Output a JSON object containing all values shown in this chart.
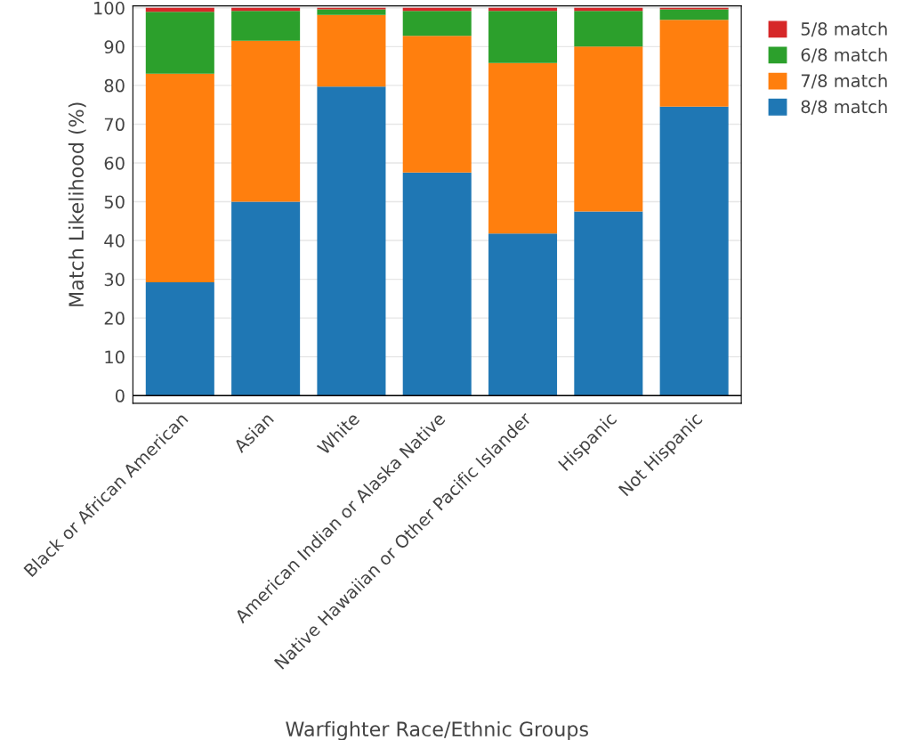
{
  "chart_data": {
    "type": "bar",
    "stacked": true,
    "xlabel": "Warfighter Race/Ethnic Groups",
    "ylabel": "Match Likelihood (%)",
    "categories": [
      "Black or African American",
      "Asian",
      "White",
      "American Indian or Alaska Native",
      "Native Hawaiian or Other Pacific Islander",
      "Hispanic",
      "Not Hispanic"
    ],
    "series": [
      {
        "name": "8/8 match",
        "color": "#1f77b4",
        "values": [
          29.2,
          50,
          79.7,
          57.5,
          41.8,
          47.5,
          74.5
        ]
      },
      {
        "name": "7/8 match",
        "color": "#ff7f0e",
        "values": [
          53.8,
          41.5,
          18.5,
          35.3,
          44.0,
          42.5,
          22.4
        ]
      },
      {
        "name": "6/8 match",
        "color": "#2ca02c",
        "values": [
          16,
          7.7,
          1.4,
          6.4,
          13.4,
          9.2,
          2.7
        ]
      },
      {
        "name": "5/8 match",
        "color": "#d62728",
        "values": [
          1.0,
          0.8,
          0.4,
          0.8,
          0.8,
          0.8,
          0.4
        ]
      }
    ],
    "ylim": [
      -2,
      100.5
    ],
    "yticks": [
      0,
      10,
      20,
      30,
      40,
      50,
      60,
      70,
      80,
      90,
      100
    ],
    "grid": "y",
    "legend": "right"
  }
}
